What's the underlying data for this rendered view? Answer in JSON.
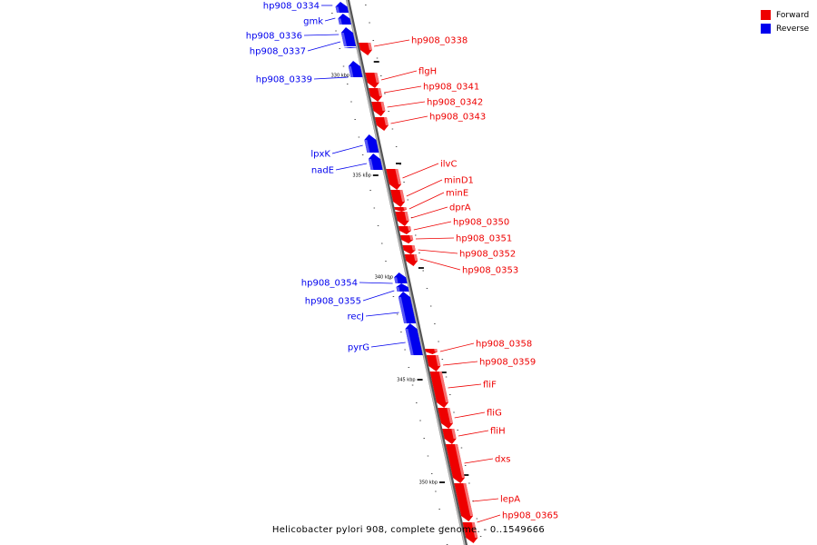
{
  "colors": {
    "forward": "#ee0000",
    "reverse": "#0000ee",
    "backbone": "#888888"
  },
  "legend": [
    {
      "label": "Forward",
      "color": "#ee0000"
    },
    {
      "label": "Reverse",
      "color": "#0000ee"
    }
  ],
  "caption": "Helicobacter pylori 908, complete genome. - 0..1549666",
  "scale_marks": [
    "330 kbp",
    "335 kbp",
    "340 kbp",
    "345 kbp",
    "350 kbp"
  ],
  "genes": [
    {
      "name": "hp908_0334",
      "strand": "reverse"
    },
    {
      "name": "gmk",
      "strand": "reverse"
    },
    {
      "name": "hp908_0336",
      "strand": "reverse"
    },
    {
      "name": "hp908_0337",
      "strand": "reverse"
    },
    {
      "name": "hp908_0338",
      "strand": "forward"
    },
    {
      "name": "hp908_0339",
      "strand": "reverse"
    },
    {
      "name": "flgH",
      "strand": "forward"
    },
    {
      "name": "hp908_0341",
      "strand": "forward"
    },
    {
      "name": "hp908_0342",
      "strand": "forward"
    },
    {
      "name": "hp908_0343",
      "strand": "forward"
    },
    {
      "name": "lpxK",
      "strand": "reverse"
    },
    {
      "name": "nadE",
      "strand": "reverse"
    },
    {
      "name": "ilvC",
      "strand": "forward"
    },
    {
      "name": "minD1",
      "strand": "forward"
    },
    {
      "name": "minE",
      "strand": "forward"
    },
    {
      "name": "dprA",
      "strand": "forward"
    },
    {
      "name": "hp908_0350",
      "strand": "forward"
    },
    {
      "name": "hp908_0351",
      "strand": "forward"
    },
    {
      "name": "hp908_0352",
      "strand": "forward"
    },
    {
      "name": "hp908_0353",
      "strand": "forward"
    },
    {
      "name": "hp908_0354",
      "strand": "reverse"
    },
    {
      "name": "hp908_0355",
      "strand": "reverse"
    },
    {
      "name": "recJ",
      "strand": "reverse"
    },
    {
      "name": "pyrG",
      "strand": "reverse"
    },
    {
      "name": "hp908_0358",
      "strand": "forward"
    },
    {
      "name": "hp908_0359",
      "strand": "forward"
    },
    {
      "name": "fliF",
      "strand": "forward"
    },
    {
      "name": "fliG",
      "strand": "forward"
    },
    {
      "name": "fliH",
      "strand": "forward"
    },
    {
      "name": "dxs",
      "strand": "forward"
    },
    {
      "name": "lepA",
      "strand": "forward"
    },
    {
      "name": "hp908_0365",
      "strand": "forward"
    }
  ]
}
